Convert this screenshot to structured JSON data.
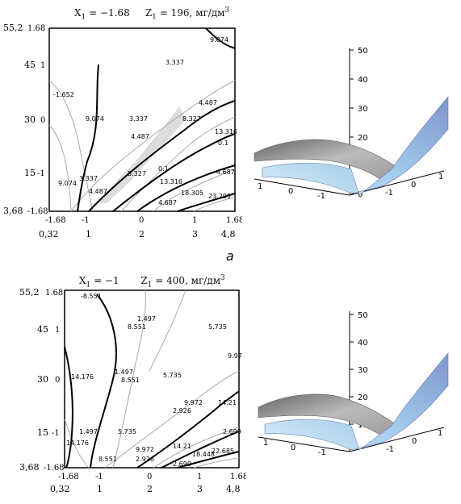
{
  "panels": [
    {
      "header": {
        "x_name": "X",
        "x_sub": "1",
        "x_value": " = −1.68",
        "z_name": "Z",
        "z_sub": "1",
        "z_value": " = 196, мг/дм",
        "z_sup": "3"
      },
      "contour_labels": [
        "9.074",
        "3.337",
        "-1.652",
        "4.487",
        "9.074",
        "3.337",
        "4.487",
        "8.327",
        "13.316",
        "0.1",
        "9.074",
        "3.337",
        "4.487",
        "8.327",
        "0.1",
        "13.316",
        "-4.687",
        "18.305",
        "4.687",
        "23.295"
      ],
      "caption": "а"
    },
    {
      "header": {
        "x_name": "X",
        "x_sub": "1",
        "x_value": " = −1",
        "z_name": "Z",
        "z_sub": "1",
        "z_value": " = 400, мг/дм",
        "z_sup": "3"
      },
      "contour_labels": [
        "-8.551",
        "1.497",
        "8.551",
        "5.735",
        "9.97",
        "14.176",
        "1.497",
        "8.551",
        "5.735",
        "9.972",
        "2.926",
        "14.21",
        "1.497",
        "14.176",
        "2.699",
        "5.735",
        "9.972",
        "2.926",
        "14.21",
        "18.448",
        "22.685",
        "8.551",
        "2.699"
      ],
      "caption": ""
    }
  ],
  "axes": {
    "x_coded_ticks": [
      "-1.68",
      "-1",
      "0",
      "1",
      "1.68"
    ],
    "x_natural_ticks": [
      "0,32",
      "1",
      "2",
      "3",
      "4,8"
    ],
    "y_coded_ticks": [
      "1.68",
      "1",
      "0",
      "-1",
      "-1.68"
    ],
    "y_natural_ticks": [
      "55,2",
      "45",
      "30",
      "15",
      "3,68"
    ]
  },
  "surface": {
    "z_ticks": [
      "50",
      "40",
      "30",
      "20",
      "10",
      "0"
    ],
    "x_ticks": [
      "1",
      "0",
      "-1"
    ],
    "y_ticks": [
      "-1",
      "0",
      "1"
    ],
    "colors": {
      "surface_blue": "#7f93cc",
      "surface_light": "#bfe0f2",
      "surface_grey": "#8c8c8c"
    }
  }
}
